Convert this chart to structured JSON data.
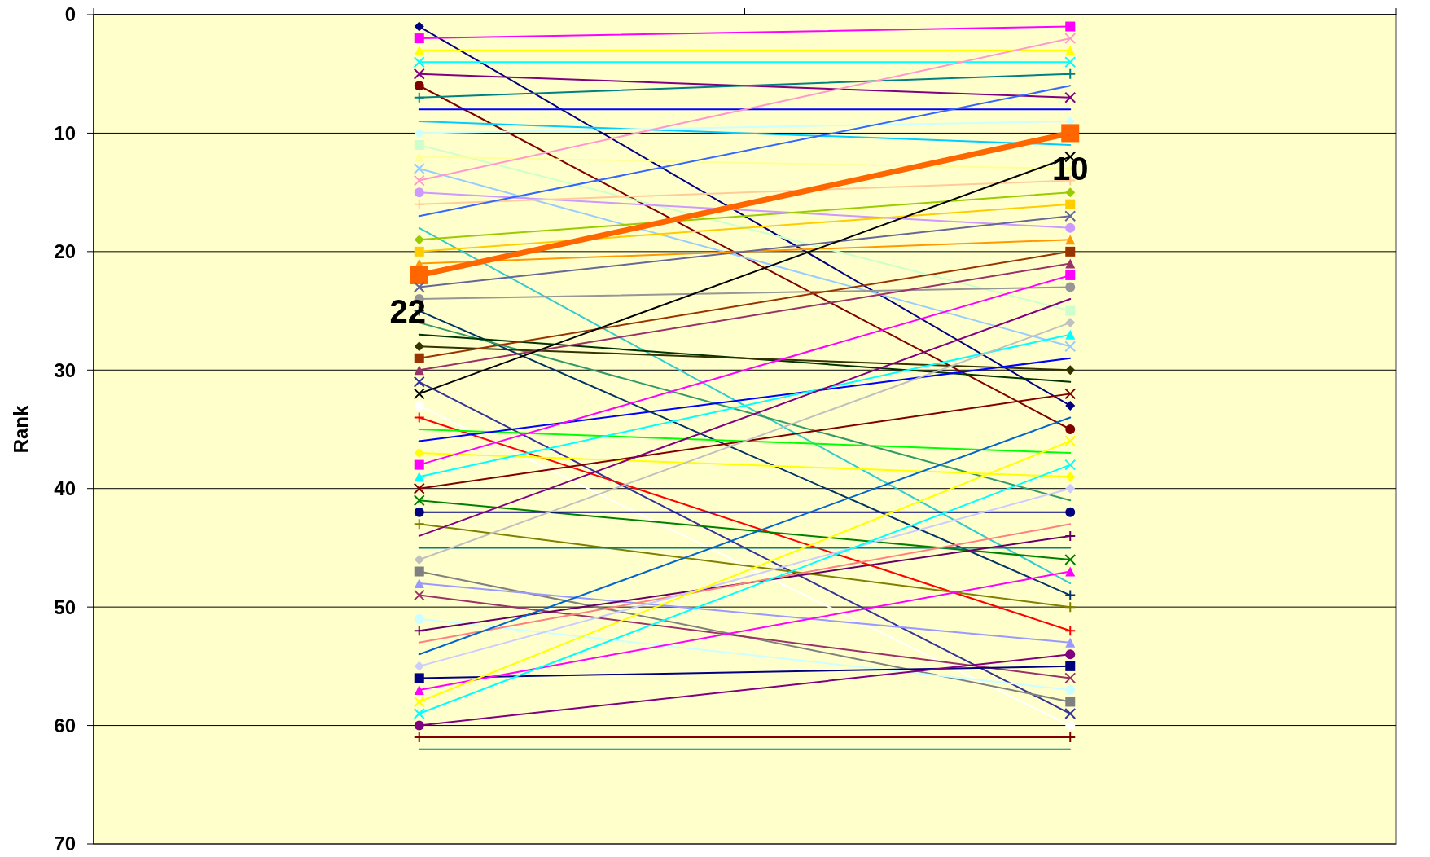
{
  "chart_data": {
    "type": "line",
    "ylabel": "Rank",
    "categories": [
      null,
      null
    ],
    "ylim": [
      70,
      0
    ],
    "yticks": [
      0,
      10,
      20,
      30,
      40,
      50,
      60,
      70
    ],
    "grid": "y",
    "tick_labels": "y",
    "series": [
      {
        "color": "#000080",
        "marker": "diamond",
        "values": [
          1,
          33
        ]
      },
      {
        "color": "#ff00ff",
        "marker": "square",
        "values": [
          2,
          1
        ]
      },
      {
        "color": "#ffff00",
        "marker": "triangle",
        "values": [
          3,
          3
        ]
      },
      {
        "color": "#00ffff",
        "marker": "cross",
        "values": [
          4,
          4
        ]
      },
      {
        "color": "#800080",
        "marker": "cross",
        "values": [
          5,
          7
        ]
      },
      {
        "color": "#800000",
        "marker": "circle",
        "values": [
          6,
          35
        ]
      },
      {
        "color": "#008080",
        "marker": "plus",
        "values": [
          7,
          5
        ]
      },
      {
        "color": "#0000ff",
        "marker": "none",
        "values": [
          8,
          8
        ]
      },
      {
        "color": "#00ccff",
        "marker": "none",
        "values": [
          9,
          11
        ]
      },
      {
        "color": "#ccffff",
        "marker": "diamond",
        "values": [
          10,
          9
        ]
      },
      {
        "color": "#ccffcc",
        "marker": "square",
        "values": [
          11,
          25
        ]
      },
      {
        "color": "#ffff99",
        "marker": "triangle",
        "values": [
          12,
          13
        ]
      },
      {
        "color": "#99ccff",
        "marker": "cross",
        "values": [
          13,
          28
        ]
      },
      {
        "color": "#ff99cc",
        "marker": "cross",
        "values": [
          14,
          2
        ]
      },
      {
        "color": "#cc99ff",
        "marker": "circle",
        "values": [
          15,
          18
        ]
      },
      {
        "color": "#ffcc99",
        "marker": "plus",
        "values": [
          16,
          14
        ]
      },
      {
        "color": "#3366ff",
        "marker": "none",
        "values": [
          17,
          6
        ]
      },
      {
        "color": "#33cccc",
        "marker": "none",
        "values": [
          18,
          48
        ]
      },
      {
        "color": "#99cc00",
        "marker": "diamond",
        "values": [
          19,
          15
        ]
      },
      {
        "color": "#ffcc00",
        "marker": "square",
        "values": [
          20,
          16
        ]
      },
      {
        "color": "#ff9900",
        "marker": "triangle",
        "values": [
          21,
          19
        ]
      },
      {
        "color": "#ff6600",
        "marker": "square",
        "values": [
          22,
          10
        ],
        "value_labels": [
          "22",
          "10"
        ]
      },
      {
        "color": "#666699",
        "marker": "cross",
        "values": [
          23,
          17
        ]
      },
      {
        "color": "#969696",
        "marker": "circle",
        "values": [
          24,
          23
        ]
      },
      {
        "color": "#003366",
        "marker": "plus",
        "values": [
          25,
          49
        ]
      },
      {
        "color": "#339966",
        "marker": "none",
        "values": [
          26,
          41
        ]
      },
      {
        "color": "#003300",
        "marker": "none",
        "values": [
          27,
          31
        ]
      },
      {
        "color": "#333300",
        "marker": "diamond",
        "values": [
          28,
          30
        ]
      },
      {
        "color": "#993300",
        "marker": "square",
        "values": [
          29,
          20
        ]
      },
      {
        "color": "#993366",
        "marker": "triangle",
        "values": [
          30,
          21
        ]
      },
      {
        "color": "#333399",
        "marker": "cross",
        "values": [
          31,
          59
        ]
      },
      {
        "color": "#000000",
        "marker": "cross",
        "values": [
          32,
          12
        ]
      },
      {
        "color": "#ffffff",
        "marker": "circle",
        "values": [
          33,
          60
        ]
      },
      {
        "color": "#ff0000",
        "marker": "plus",
        "values": [
          34,
          52
        ]
      },
      {
        "color": "#00ff00",
        "marker": "none",
        "values": [
          35,
          37
        ]
      },
      {
        "color": "#0000ff",
        "marker": "none",
        "values": [
          36,
          29
        ]
      },
      {
        "color": "#ffff00",
        "marker": "diamond",
        "values": [
          37,
          39
        ]
      },
      {
        "color": "#ff00ff",
        "marker": "square",
        "values": [
          38,
          22
        ]
      },
      {
        "color": "#00ffff",
        "marker": "triangle",
        "values": [
          39,
          27
        ]
      },
      {
        "color": "#800000",
        "marker": "cross",
        "values": [
          40,
          32
        ]
      },
      {
        "color": "#008000",
        "marker": "cross",
        "values": [
          41,
          46
        ]
      },
      {
        "color": "#000080",
        "marker": "circle",
        "values": [
          42,
          42
        ]
      },
      {
        "color": "#808000",
        "marker": "plus",
        "values": [
          43,
          50
        ]
      },
      {
        "color": "#800080",
        "marker": "none",
        "values": [
          44,
          24
        ]
      },
      {
        "color": "#008080",
        "marker": "none",
        "values": [
          45,
          45
        ]
      },
      {
        "color": "#c0c0c0",
        "marker": "diamond",
        "values": [
          46,
          26
        ]
      },
      {
        "color": "#808080",
        "marker": "square",
        "values": [
          47,
          58
        ]
      },
      {
        "color": "#9999ff",
        "marker": "triangle",
        "values": [
          48,
          53
        ]
      },
      {
        "color": "#993366",
        "marker": "cross",
        "values": [
          49,
          56
        ]
      },
      {
        "color": "#ccffff",
        "marker": "circle",
        "values": [
          51,
          57
        ]
      },
      {
        "color": "#660066",
        "marker": "plus",
        "values": [
          52,
          44
        ]
      },
      {
        "color": "#ff8080",
        "marker": "none",
        "values": [
          53,
          43
        ]
      },
      {
        "color": "#0066cc",
        "marker": "none",
        "values": [
          54,
          34
        ]
      },
      {
        "color": "#ccccff",
        "marker": "diamond",
        "values": [
          55,
          40
        ]
      },
      {
        "color": "#000080",
        "marker": "square",
        "values": [
          56,
          55
        ]
      },
      {
        "color": "#ff00ff",
        "marker": "triangle",
        "values": [
          57,
          47
        ]
      },
      {
        "color": "#ffff00",
        "marker": "cross",
        "values": [
          58,
          36
        ]
      },
      {
        "color": "#00ffff",
        "marker": "cross",
        "values": [
          59,
          38
        ]
      },
      {
        "color": "#800080",
        "marker": "circle",
        "values": [
          60,
          54
        ]
      },
      {
        "color": "#800000",
        "marker": "plus",
        "values": [
          61,
          61
        ]
      },
      {
        "color": "#008080",
        "marker": "none",
        "values": [
          62,
          62
        ]
      }
    ]
  }
}
